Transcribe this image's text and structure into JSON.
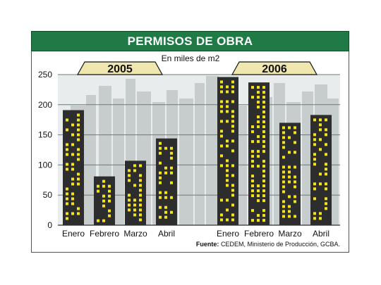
{
  "title": "PERMISOS DE OBRA",
  "subtitle": "En miles de m2",
  "source_label": "Fuente:",
  "source_text": "CEDEM, Ministerio de Producción, GCBA.",
  "colors": {
    "title_bg": "#1f7a45",
    "plot_bg": "#e8ecec",
    "building": "#2d2d2d",
    "window": "#f5e41a",
    "year_tab": "#efe6b0",
    "skyline": "#c7cccc"
  },
  "chart_data": {
    "type": "bar",
    "title": "PERMISOS DE OBRA",
    "subtitle": "En miles de m2",
    "ylim": [
      0,
      250
    ],
    "yticks": [
      0,
      50,
      100,
      150,
      200,
      250
    ],
    "grid": true,
    "groups": [
      {
        "name": "2005",
        "categories": [
          "Enero",
          "Febrero",
          "Marzo",
          "Abril"
        ],
        "values": [
          191,
          81,
          107,
          144
        ]
      },
      {
        "name": "2006",
        "categories": [
          "Enero",
          "Febrero",
          "Marzo",
          "Abril"
        ],
        "values": [
          246,
          237,
          170,
          183
        ]
      }
    ]
  }
}
